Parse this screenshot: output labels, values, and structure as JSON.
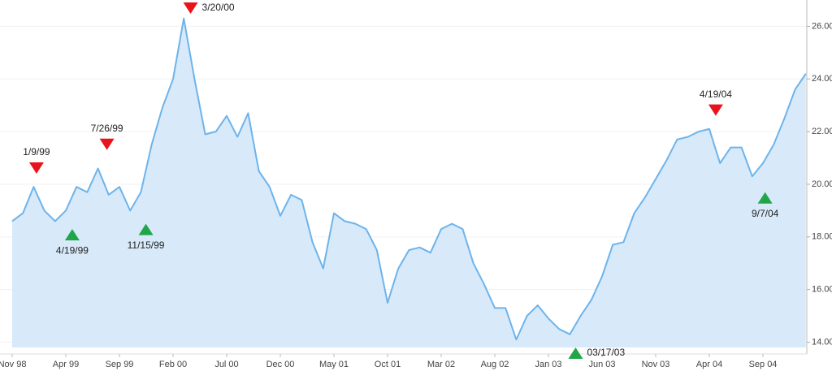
{
  "chart_data": {
    "type": "area",
    "categories": [
      "Nov 98",
      null,
      null,
      null,
      null,
      "Apr 99",
      null,
      null,
      null,
      null,
      "Sep 99",
      null,
      null,
      null,
      null,
      "Feb 00",
      null,
      null,
      null,
      null,
      "Jul 00",
      null,
      null,
      null,
      null,
      "Dec 00",
      null,
      null,
      null,
      null,
      "May 01",
      null,
      null,
      null,
      null,
      "Oct 01",
      null,
      null,
      null,
      null,
      "Mar 02",
      null,
      null,
      null,
      null,
      "Aug 02",
      null,
      null,
      null,
      null,
      "Jan 03",
      null,
      null,
      null,
      null,
      "Jun 03",
      null,
      null,
      null,
      null,
      "Nov 03",
      null,
      null,
      null,
      null,
      "Apr 04",
      null,
      null,
      null,
      null,
      "Sep 04",
      null,
      null,
      null,
      null
    ],
    "values": [
      18.6,
      18.9,
      19.9,
      19.0,
      18.6,
      19.0,
      19.9,
      19.7,
      20.6,
      19.6,
      19.9,
      19.0,
      19.7,
      21.5,
      22.9,
      24.0,
      26.3,
      24.0,
      21.9,
      22.0,
      22.6,
      21.8,
      22.7,
      20.5,
      19.9,
      18.8,
      19.6,
      19.4,
      17.8,
      16.8,
      18.9,
      18.6,
      18.5,
      18.3,
      17.5,
      15.5,
      16.8,
      17.5,
      17.6,
      17.4,
      18.3,
      18.5,
      18.3,
      17.0,
      16.2,
      15.3,
      15.3,
      14.1,
      15.0,
      15.4,
      14.9,
      14.5,
      14.3,
      15.0,
      15.6,
      16.5,
      17.7,
      17.8,
      18.9,
      19.5,
      20.2,
      20.9,
      21.7,
      21.8,
      22.0,
      22.1,
      20.8,
      21.4,
      21.4,
      20.3,
      20.8,
      21.5,
      22.5,
      23.6,
      24.2
    ],
    "color": "#6cb4ec",
    "fill": "#d8e9f9",
    "ylim": [
      13.8,
      27
    ],
    "yticks": [
      {
        "value": 14,
        "label": "14.00"
      },
      {
        "value": 16,
        "label": "16.00"
      },
      {
        "value": 18,
        "label": "18.00"
      },
      {
        "value": 20,
        "label": "20.00"
      },
      {
        "value": 22,
        "label": "22.00"
      },
      {
        "value": 24,
        "label": "24.00"
      },
      {
        "value": 26,
        "label": "26.00"
      }
    ],
    "grid": true,
    "annotations": [
      {
        "label": "1/9/99",
        "direction": "down",
        "value": 20.0,
        "color": "#e8141c"
      },
      {
        "label": "4/19/99",
        "direction": "up",
        "value": 18.7,
        "color": "#1fa64a"
      },
      {
        "label": "7/26/99",
        "direction": "down",
        "value": 20.9,
        "color": "#e8141c"
      },
      {
        "label": "11/15/99",
        "direction": "up",
        "value": 18.9,
        "color": "#1fa64a"
      },
      {
        "label": "3/20/00",
        "direction": "down",
        "value": 26.5,
        "color": "#e8141c"
      },
      {
        "label": "03/17/03",
        "direction": "up",
        "value": 14.2,
        "color": "#1fa64a"
      },
      {
        "label": "4/19/04",
        "direction": "down",
        "value": 22.2,
        "color": "#e8141c"
      },
      {
        "label": "9/7/04",
        "direction": "up",
        "value": 20.1,
        "color": "#1fa64a"
      }
    ]
  }
}
